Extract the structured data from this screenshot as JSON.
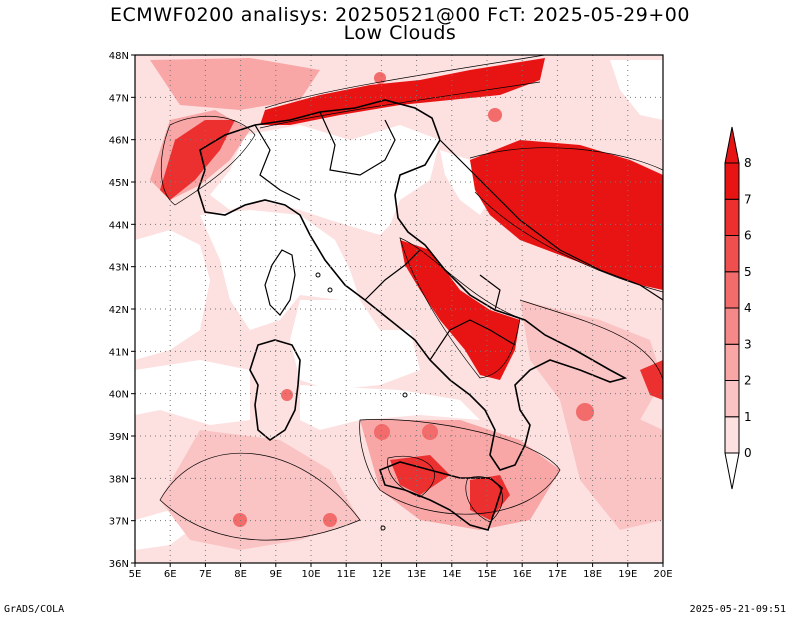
{
  "title_line1": "ECMWF0200 analisys: 20250521@00 FcT: 2025-05-29+00",
  "title_line2": "Low Clouds",
  "footer_left": "GrADS/COLA",
  "footer_right": "2025-05-21-09:51",
  "map": {
    "lat_labels": [
      "48N",
      "47N",
      "46N",
      "45N",
      "44N",
      "43N",
      "42N",
      "41N",
      "40N",
      "39N",
      "38N",
      "37N",
      "36N"
    ],
    "lon_labels": [
      "5E",
      "6E",
      "7E",
      "8E",
      "9E",
      "10E",
      "11E",
      "12E",
      "13E",
      "14E",
      "15E",
      "16E",
      "17E",
      "18E",
      "19E",
      "20E"
    ],
    "lat_range": [
      36,
      48
    ],
    "lon_range": [
      5,
      20
    ],
    "grid": "dotted"
  },
  "colorbar": {
    "levels": [
      "0",
      "1",
      "2",
      "3",
      "4",
      "5",
      "6",
      "7",
      "8"
    ],
    "colors": [
      "#ffffff",
      "#fde0e0",
      "#fbc4c4",
      "#f8a6a6",
      "#f58989",
      "#f26c6c",
      "#ef4f4f",
      "#ec3030",
      "#e81414"
    ],
    "extend": "both"
  }
}
